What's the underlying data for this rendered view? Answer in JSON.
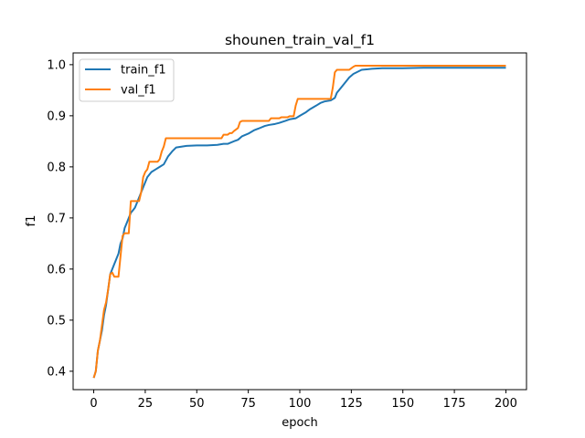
{
  "chart_data": {
    "type": "line",
    "title": "shounen_train_val_f1",
    "xlabel": "epoch",
    "ylabel": "f1",
    "xlim": [
      -10,
      210
    ],
    "ylim": [
      0.364,
      1.023
    ],
    "xticks": [
      0,
      25,
      50,
      75,
      100,
      125,
      150,
      175,
      200
    ],
    "yticks": [
      0.4,
      0.5,
      0.6,
      0.7,
      0.8,
      0.9,
      1.0
    ],
    "ytick_labels": [
      "0.4",
      "0.5",
      "0.6",
      "0.7",
      "0.8",
      "0.9",
      "1.0"
    ],
    "grid": false,
    "legend": "top-left",
    "colors": {
      "train_f1": "#1f77b4",
      "val_f1": "#ff7f0e"
    },
    "series": [
      {
        "name": "train_f1",
        "x": [
          0,
          1,
          2,
          3,
          4,
          5,
          6,
          7,
          8,
          9,
          10,
          11,
          12,
          13,
          14,
          15,
          16,
          17,
          18,
          19,
          20,
          22,
          24,
          26,
          28,
          30,
          32,
          34,
          36,
          38,
          40,
          45,
          50,
          55,
          60,
          63,
          65,
          68,
          70,
          72,
          75,
          78,
          80,
          83,
          85,
          88,
          90,
          93,
          95,
          98,
          100,
          103,
          105,
          108,
          110,
          112,
          115,
          117,
          118,
          120,
          122,
          124,
          126,
          128,
          130,
          133,
          135,
          140,
          150,
          160,
          170,
          180,
          190,
          200
        ],
        "y": [
          0.387,
          0.4,
          0.44,
          0.46,
          0.48,
          0.51,
          0.53,
          0.56,
          0.59,
          0.6,
          0.61,
          0.62,
          0.63,
          0.65,
          0.66,
          0.68,
          0.69,
          0.7,
          0.71,
          0.715,
          0.72,
          0.74,
          0.76,
          0.78,
          0.79,
          0.795,
          0.8,
          0.805,
          0.82,
          0.83,
          0.838,
          0.841,
          0.842,
          0.842,
          0.843,
          0.845,
          0.845,
          0.85,
          0.853,
          0.86,
          0.865,
          0.872,
          0.875,
          0.88,
          0.882,
          0.884,
          0.886,
          0.89,
          0.893,
          0.895,
          0.9,
          0.907,
          0.913,
          0.92,
          0.925,
          0.928,
          0.93,
          0.935,
          0.945,
          0.955,
          0.965,
          0.975,
          0.982,
          0.986,
          0.99,
          0.991,
          0.992,
          0.993,
          0.993,
          0.994,
          0.994,
          0.994,
          0.994,
          0.994
        ]
      },
      {
        "name": "val_f1",
        "x": [
          0,
          1,
          2,
          3,
          4,
          5,
          6,
          7,
          8,
          9,
          10,
          11,
          12,
          13,
          14,
          15,
          17,
          18,
          19,
          22,
          23,
          24,
          25,
          26,
          27,
          29,
          31,
          32,
          33,
          34,
          35,
          40,
          50,
          60,
          62,
          63,
          65,
          66,
          67,
          68,
          70,
          71,
          72,
          80,
          85,
          86,
          90,
          91,
          94,
          95,
          96,
          97,
          98,
          99,
          100,
          110,
          115,
          116,
          117,
          118,
          120,
          122,
          124,
          125,
          126,
          127,
          128,
          135,
          150,
          175,
          200
        ],
        "y": [
          0.387,
          0.4,
          0.44,
          0.46,
          0.49,
          0.52,
          0.535,
          0.56,
          0.59,
          0.593,
          0.585,
          0.585,
          0.585,
          0.625,
          0.665,
          0.67,
          0.67,
          0.733,
          0.733,
          0.733,
          0.75,
          0.78,
          0.79,
          0.795,
          0.81,
          0.81,
          0.81,
          0.815,
          0.83,
          0.84,
          0.856,
          0.856,
          0.856,
          0.856,
          0.856,
          0.863,
          0.863,
          0.866,
          0.866,
          0.87,
          0.876,
          0.888,
          0.89,
          0.89,
          0.89,
          0.895,
          0.895,
          0.897,
          0.897,
          0.899,
          0.899,
          0.899,
          0.92,
          0.933,
          0.933,
          0.933,
          0.933,
          0.955,
          0.985,
          0.99,
          0.99,
          0.99,
          0.99,
          0.993,
          0.996,
          0.998,
          0.998,
          0.998,
          0.998,
          0.998,
          0.998
        ]
      }
    ]
  }
}
